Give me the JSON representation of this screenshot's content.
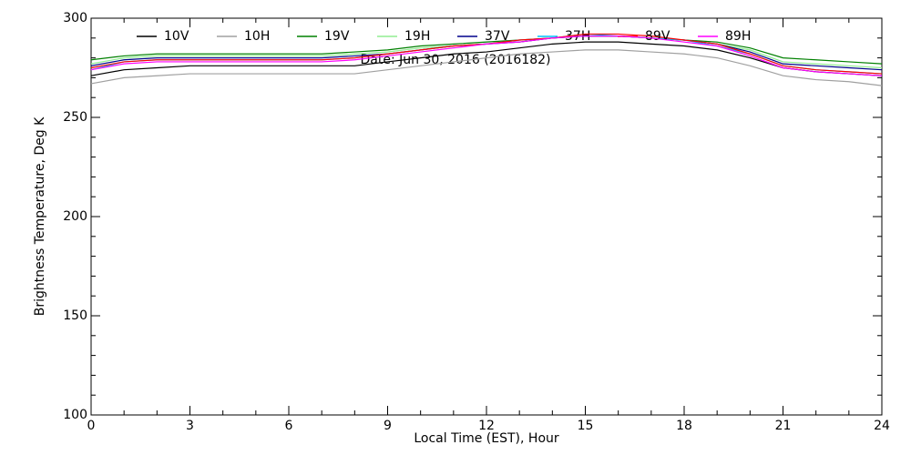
{
  "chart_data": {
    "type": "line",
    "xlabel": "Local Time (EST), Hour",
    "ylabel": "Brightness Temperature, Deg K",
    "annotation": "Date: Jun 30, 2016 (2016182)",
    "x": [
      0,
      1,
      2,
      3,
      4,
      5,
      6,
      7,
      8,
      9,
      10,
      11,
      12,
      13,
      14,
      15,
      16,
      17,
      18,
      19,
      20,
      21,
      22,
      23,
      24
    ],
    "xlim": [
      0,
      24
    ],
    "xticks": [
      0,
      3,
      6,
      9,
      12,
      15,
      18,
      21,
      24
    ],
    "ylim": [
      100,
      300
    ],
    "yticks": [
      100,
      150,
      200,
      250,
      300
    ],
    "series": [
      {
        "name": "10V",
        "color": "#000000",
        "values": [
          271,
          274,
          275,
          276,
          276,
          276,
          276,
          276,
          276,
          278,
          280,
          282,
          283,
          285,
          287,
          288,
          288,
          287,
          286,
          284,
          280,
          275,
          273,
          272,
          271
        ]
      },
      {
        "name": "10H",
        "color": "#a0a0a0",
        "values": [
          267,
          270,
          271,
          272,
          272,
          272,
          272,
          272,
          272,
          274,
          276,
          278,
          280,
          282,
          283,
          284,
          284,
          283,
          282,
          280,
          276,
          271,
          269,
          268,
          266
        ]
      },
      {
        "name": "19V",
        "color": "#008000",
        "values": [
          279,
          281,
          282,
          282,
          282,
          282,
          282,
          282,
          283,
          284,
          286,
          287,
          288,
          289,
          290,
          291,
          291,
          290,
          289,
          288,
          285,
          280,
          279,
          278,
          277
        ]
      },
      {
        "name": "19H",
        "color": "#90ee90",
        "values": [
          277,
          280,
          281,
          281,
          281,
          281,
          281,
          281,
          282,
          283,
          285,
          286,
          287,
          288,
          290,
          291,
          291,
          290,
          289,
          287,
          284,
          278,
          277,
          276,
          275
        ]
      },
      {
        "name": "37V",
        "color": "#00008b",
        "values": [
          276,
          279,
          280,
          280,
          280,
          280,
          280,
          280,
          281,
          282,
          284,
          286,
          287,
          288,
          290,
          291,
          291,
          290,
          289,
          287,
          283,
          277,
          276,
          275,
          274
        ]
      },
      {
        "name": "37H",
        "color": "#00bfff",
        "values": [
          274,
          278,
          279,
          279,
          279,
          279,
          279,
          279,
          280,
          282,
          284,
          286,
          287,
          289,
          290,
          292,
          291,
          290,
          289,
          286,
          282,
          276,
          274,
          273,
          272
        ]
      },
      {
        "name": "89V",
        "color": "#ff0000",
        "values": [
          275,
          278,
          279,
          279,
          279,
          279,
          279,
          279,
          280,
          282,
          284,
          286,
          287,
          289,
          290,
          292,
          292,
          291,
          289,
          287,
          282,
          276,
          274,
          273,
          272
        ]
      },
      {
        "name": "89H",
        "color": "#ff00ff",
        "values": [
          274,
          277,
          278,
          278,
          278,
          278,
          278,
          278,
          279,
          281,
          283,
          285,
          287,
          288,
          290,
          291,
          291,
          290,
          288,
          286,
          281,
          275,
          273,
          272,
          271
        ]
      }
    ]
  }
}
